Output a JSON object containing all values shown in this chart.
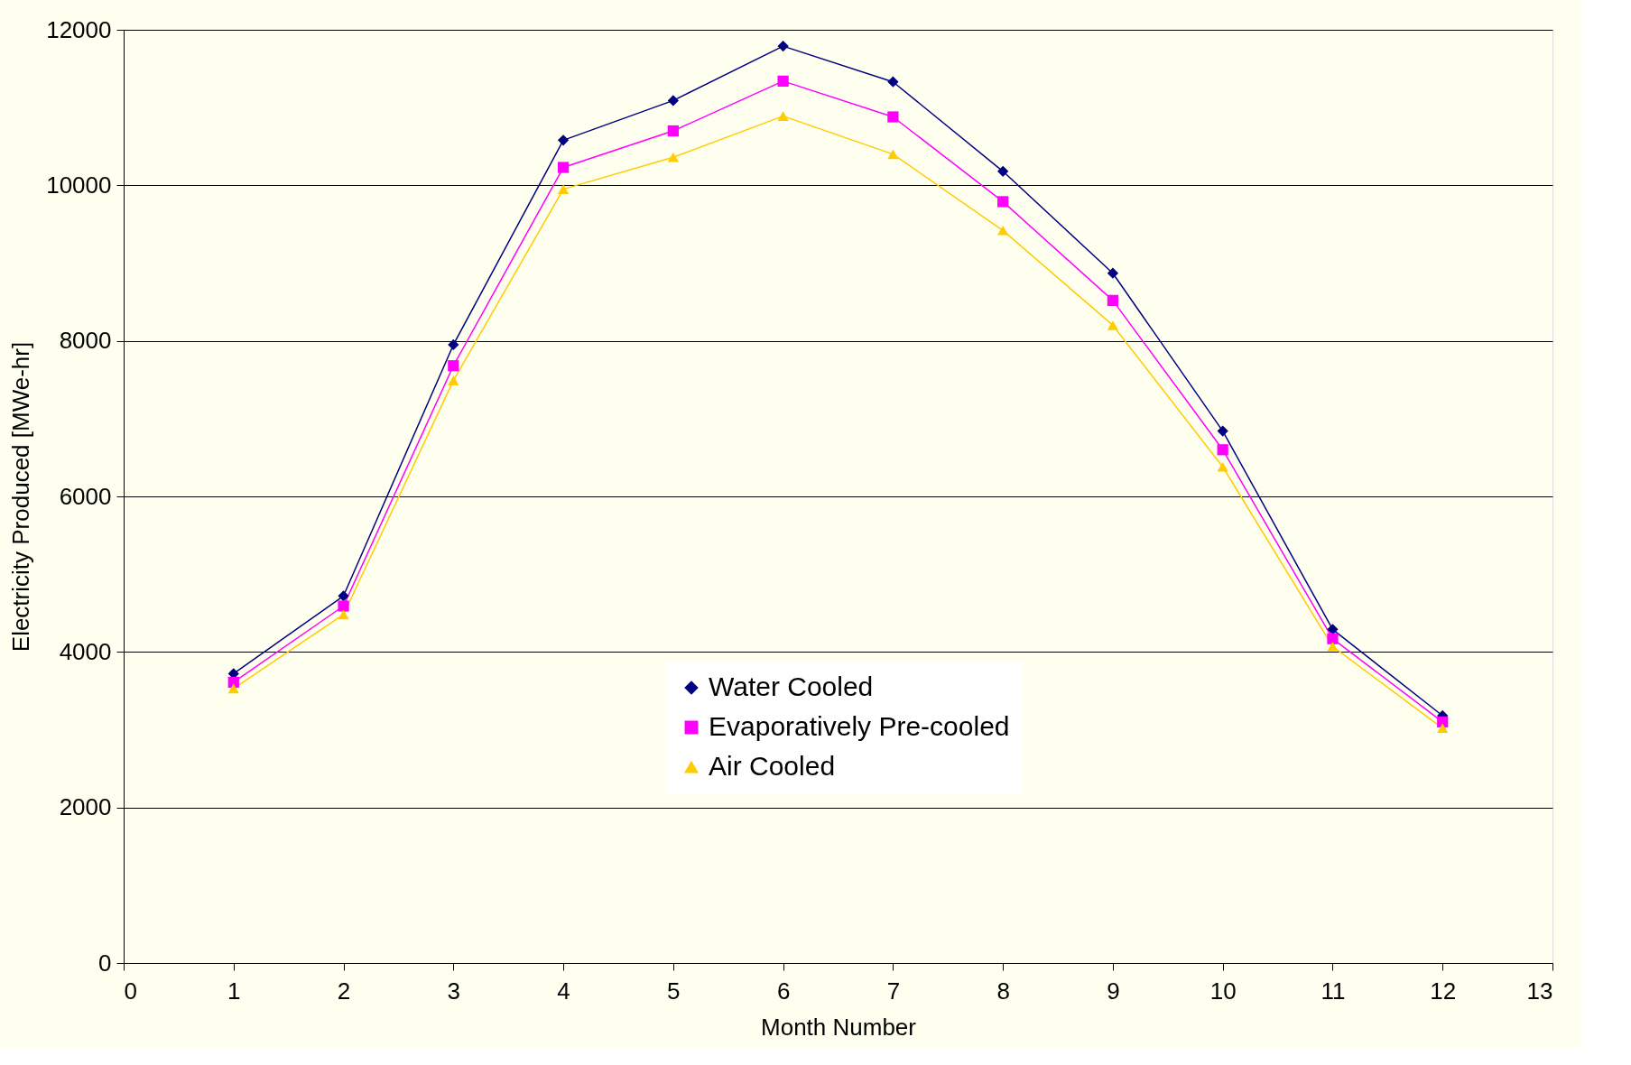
{
  "chart_data": {
    "type": "line",
    "xlabel": "Month Number",
    "ylabel": "Electricity Produced [MWe-hr]",
    "x": [
      1,
      2,
      3,
      4,
      5,
      6,
      7,
      8,
      9,
      10,
      11,
      12
    ],
    "series": [
      {
        "name": "Water Cooled",
        "color": "#000080",
        "marker": "diamond",
        "values": [
          3720,
          4720,
          7950,
          10580,
          11090,
          11790,
          11330,
          10180,
          8870,
          6840,
          4290,
          3180
        ]
      },
      {
        "name": "Evaporatively Pre-cooled",
        "color": "#ff00ff",
        "marker": "square",
        "values": [
          3610,
          4590,
          7680,
          10230,
          10700,
          11340,
          10880,
          9790,
          8520,
          6600,
          4170,
          3100
        ]
      },
      {
        "name": "Air Cooled",
        "color": "#ffcc00",
        "marker": "triangle",
        "values": [
          3530,
          4480,
          7490,
          9950,
          10360,
          10890,
          10400,
          9420,
          8200,
          6380,
          4070,
          3020
        ]
      }
    ],
    "xlim": [
      0,
      13
    ],
    "xticks": [
      0,
      1,
      2,
      3,
      4,
      5,
      6,
      7,
      8,
      9,
      10,
      11,
      12,
      13
    ],
    "ylim": [
      0,
      12000
    ],
    "yticks": [
      0,
      2000,
      4000,
      6000,
      8000,
      10000,
      12000
    ],
    "grid": "y",
    "legend": "bottom",
    "line_style": "solid"
  }
}
